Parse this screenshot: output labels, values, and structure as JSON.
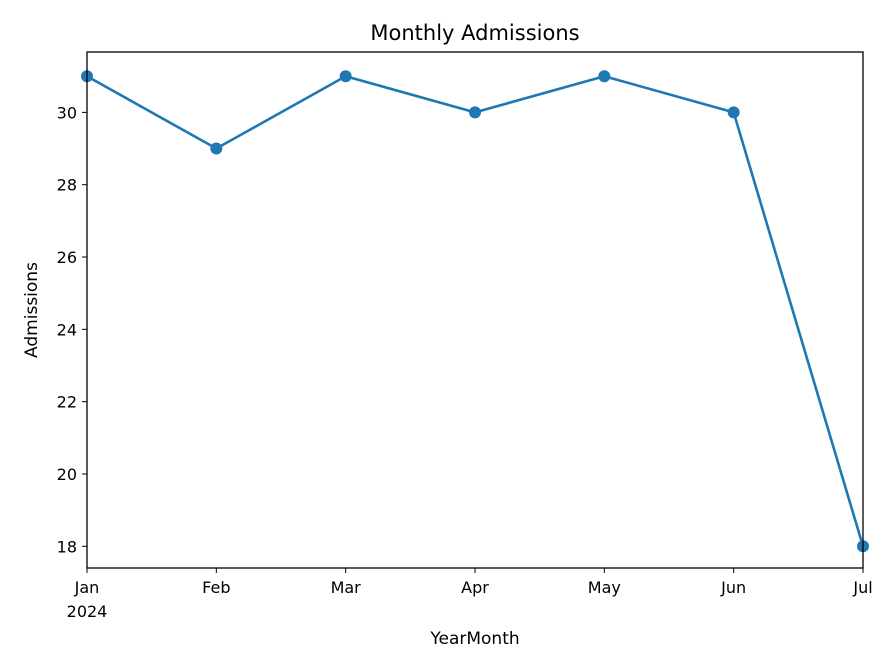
{
  "chart_data": {
    "type": "line",
    "title": "Monthly Admissions",
    "xlabel": "YearMonth",
    "ylabel": "Admissions",
    "x": [
      "2024-01",
      "2024-02",
      "2024-03",
      "2024-04",
      "2024-05",
      "2024-06",
      "2024-07"
    ],
    "x_tick_labels": [
      "Jan",
      "Feb",
      "Mar",
      "Apr",
      "May",
      "Jun",
      "Jul"
    ],
    "x_tick_year": "2024",
    "series": [
      {
        "values": [
          31,
          29,
          31,
          30,
          31,
          30,
          18
        ]
      }
    ],
    "ylim": [
      17.4,
      31.67
    ],
    "y_ticks": [
      18,
      20,
      22,
      24,
      26,
      28,
      30
    ],
    "grid": false,
    "legend": "none",
    "line_color": "#1f77b4"
  }
}
